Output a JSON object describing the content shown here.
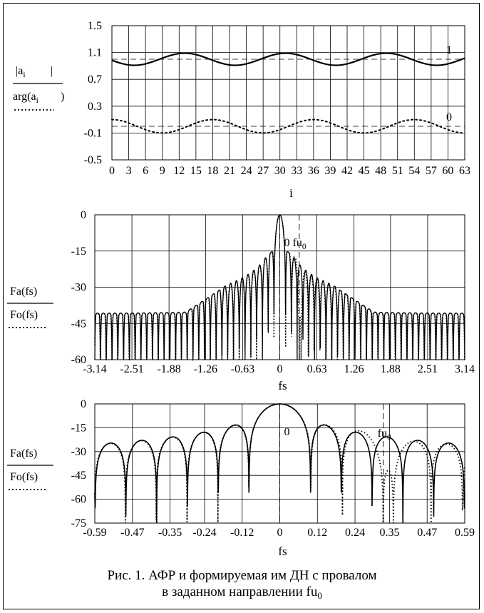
{
  "caption": {
    "line1": "Рис. 1. АФР и формируемая им ДН с провалом",
    "line2_prefix": "в заданном направлении fu",
    "line2_sub": "0"
  },
  "chart_data": [
    {
      "type": "line",
      "xlim": [
        0,
        63
      ],
      "ylim": [
        -0.5,
        1.5
      ],
      "yticks": [
        "1.5",
        "1.1",
        "0.7",
        "0.3",
        "-0.1",
        "-0.5"
      ],
      "ytick_values": [
        1.5,
        1.1,
        0.7,
        0.3,
        -0.1,
        -0.5
      ],
      "xticks": [
        "0",
        "3",
        "6",
        "9",
        "12",
        "15",
        "18",
        "21",
        "24",
        "27",
        "30",
        "33",
        "36",
        "39",
        "42",
        "45",
        "48",
        "51",
        "54",
        "57",
        "60",
        "63"
      ],
      "xlabel": "i",
      "ylabel": {
        "num_parts": [
          "|a",
          "i",
          "|"
        ],
        "den_parts": [
          "arg(a",
          "i",
          ")"
        ]
      },
      "ref_lines": [
        {
          "y": 1,
          "label": "1"
        },
        {
          "y": 0,
          "label": "0"
        }
      ],
      "series": [
        {
          "style": "solid",
          "period": 18,
          "peak_x": 13,
          "mean": 1.0,
          "amplitude": 0.09,
          "x": [
            0,
            4,
            13,
            22,
            31,
            40,
            49,
            58,
            63
          ],
          "y": [
            0.98,
            0.91,
            1.09,
            0.91,
            1.09,
            0.91,
            1.09,
            0.91,
            0.98
          ]
        },
        {
          "style": "dotted",
          "period": 18,
          "peak_x": 18,
          "mean": 0.0,
          "amplitude": 0.1,
          "x": [
            0,
            9,
            18,
            27,
            36,
            45,
            54,
            63
          ],
          "y": [
            0.07,
            -0.1,
            0.1,
            -0.1,
            0.1,
            -0.1,
            0.1,
            -0.1
          ]
        }
      ]
    },
    {
      "type": "line",
      "xlim": [
        -3.14,
        3.14
      ],
      "ylim": [
        -60,
        0
      ],
      "yticks": [
        "0",
        "-15",
        "-30",
        "-45",
        "-60"
      ],
      "ytick_values": [
        0,
        -15,
        -30,
        -45,
        -60
      ],
      "xticks": [
        "-3.14",
        "-2.51",
        "-1.88",
        "-1.26",
        "-0.63",
        "0",
        "0.63",
        "1.26",
        "1.88",
        "2.51",
        "3.14"
      ],
      "xtick_values": [
        -3.14,
        -2.51,
        -1.88,
        -1.26,
        -0.63,
        0,
        0.63,
        1.26,
        1.88,
        2.51,
        3.14
      ],
      "xlabel": "fs",
      "ylabel": {
        "num": "Fa(fs)",
        "den": "Fo(fs)"
      },
      "marker_label": {
        "prefix": "0 fu",
        "sub": "0"
      },
      "marker_x": 0.33,
      "null_x": 0.33,
      "series": [
        {
          "name": "Fa(fs)",
          "style": "solid",
          "lobes": 64,
          "mainlobe_peak": 0,
          "sidelobe_floor": -37
        },
        {
          "name": "Fo(fs)",
          "style": "dotted",
          "lobes": 64,
          "mainlobe_peak": 0,
          "sidelobe_floor": -37,
          "null_at": 0.33
        }
      ]
    },
    {
      "type": "line",
      "xlim": [
        -0.59,
        0.59
      ],
      "ylim": [
        -75,
        0
      ],
      "yticks": [
        "0",
        "-15",
        "-30",
        "-45",
        "-60",
        "-75"
      ],
      "ytick_values": [
        0,
        -15,
        -30,
        -45,
        -60,
        -75
      ],
      "xticks": [
        "-0.59",
        "-0.47",
        "-0.35",
        "-0.24",
        "-0.12",
        "0",
        "0.12",
        "0.24",
        "0.35",
        "0.47",
        "0.59"
      ],
      "xtick_values": [
        -0.59,
        -0.47,
        -0.35,
        -0.24,
        -0.12,
        0,
        0.12,
        0.24,
        0.35,
        0.47,
        0.59
      ],
      "xlabel": "fs",
      "ylabel": {
        "num": "Fa(fs)",
        "den": "Fo(fs)"
      },
      "center_label": "0",
      "marker_label": {
        "prefix": "fu",
        "sub": "0"
      },
      "marker_x": 0.33,
      "null_x": 0.33,
      "series": [
        {
          "name": "Fa(fs)",
          "style": "solid",
          "sidelobe_peaks_db": [
            -13,
            -18,
            -21,
            -24,
            -26
          ]
        },
        {
          "name": "Fo(fs)",
          "style": "dotted",
          "null_at": 0.33,
          "lobe_near_null_db": -19
        }
      ]
    }
  ]
}
